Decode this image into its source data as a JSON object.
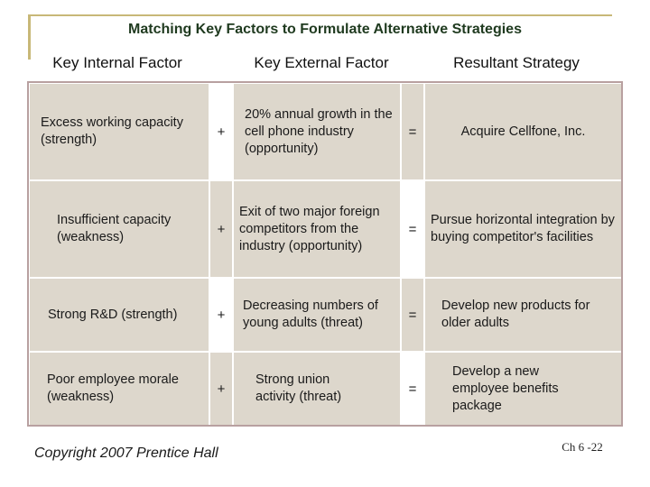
{
  "title": "Matching Key Factors to Formulate Alternative Strategies",
  "headers": {
    "internal": "Key Internal Factor",
    "external": "Key External Factor",
    "strategy": "Resultant Strategy"
  },
  "rows": [
    {
      "internal": "Excess working capacity (strength)",
      "plus": "+",
      "external": "20% annual growth in the cell phone industry (opportunity)",
      "equals": "=",
      "strategy": "Acquire Cellfone, Inc."
    },
    {
      "internal": "Insufficient capacity (weakness)",
      "plus": "+",
      "external": "Exit of two major foreign competitors from the industry (opportunity)",
      "equals": "=",
      "strategy": "Pursue horizontal integration by buying competitor's facilities"
    },
    {
      "internal": "Strong R&D (strength)",
      "plus": "+",
      "external": "Decreasing numbers of young adults (threat)",
      "equals": "=",
      "strategy": "Develop new products for older adults"
    },
    {
      "internal": "Poor employee morale (weakness)",
      "plus": "+",
      "external": "Strong union activity (threat)",
      "equals": "=",
      "strategy": "Develop a new employee benefits package"
    }
  ],
  "footer": "Copyright 2007 Prentice Hall",
  "page_number": "Ch 6 -22"
}
